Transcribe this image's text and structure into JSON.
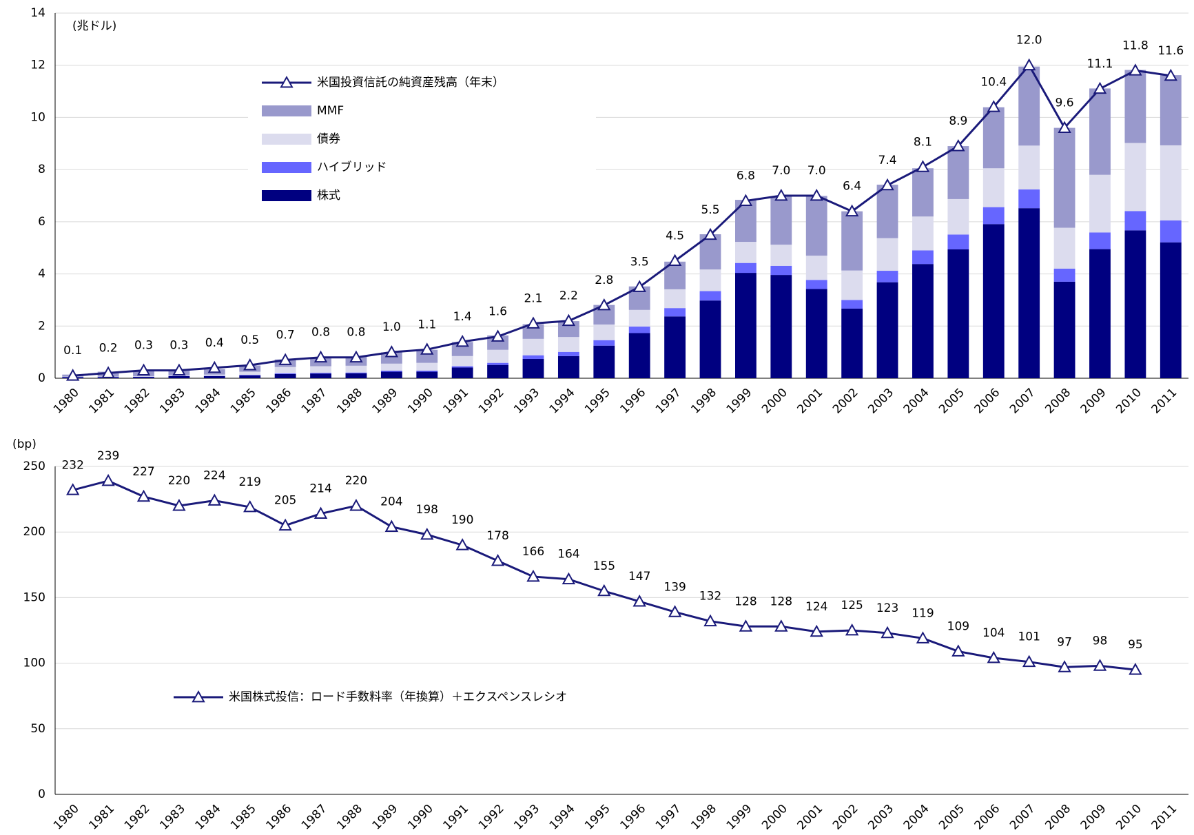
{
  "chart_data": [
    {
      "type": "stacked_bar_line",
      "y_unit_label": "(兆ドル)",
      "categories": [
        "1980",
        "1981",
        "1982",
        "1983",
        "1984",
        "1985",
        "1986",
        "1987",
        "1988",
        "1989",
        "1990",
        "1991",
        "1992",
        "1993",
        "1994",
        "1995",
        "1996",
        "1997",
        "1998",
        "1999",
        "2000",
        "2001",
        "2002",
        "2003",
        "2004",
        "2005",
        "2006",
        "2007",
        "2008",
        "2009",
        "2010",
        "2011"
      ],
      "ylim": [
        0,
        14
      ],
      "yticks": [
        0,
        2,
        4,
        6,
        8,
        10,
        12,
        14
      ],
      "grid": true,
      "series": [
        {
          "name": "株式",
          "kind": "bar",
          "color": "#000080",
          "values": [
            0.04,
            0.04,
            0.05,
            0.08,
            0.08,
            0.11,
            0.16,
            0.18,
            0.19,
            0.25,
            0.25,
            0.41,
            0.51,
            0.74,
            0.85,
            1.25,
            1.73,
            2.37,
            2.98,
            4.04,
            3.96,
            3.42,
            2.67,
            3.68,
            4.38,
            4.94,
            5.91,
            6.52,
            3.7,
            4.95,
            5.67,
            5.21
          ]
        },
        {
          "name": "ハイブリッド",
          "kind": "bar",
          "color": "#6666ff",
          "values": [
            0.01,
            0.01,
            0.01,
            0.01,
            0.01,
            0.02,
            0.03,
            0.03,
            0.03,
            0.04,
            0.04,
            0.05,
            0.08,
            0.14,
            0.16,
            0.21,
            0.25,
            0.32,
            0.36,
            0.38,
            0.35,
            0.35,
            0.33,
            0.44,
            0.52,
            0.57,
            0.65,
            0.72,
            0.5,
            0.64,
            0.74,
            0.84
          ]
        },
        {
          "name": "債券",
          "kind": "bar",
          "color": "#dcdcee",
          "values": [
            0.01,
            0.01,
            0.02,
            0.03,
            0.05,
            0.12,
            0.24,
            0.25,
            0.26,
            0.27,
            0.3,
            0.39,
            0.5,
            0.63,
            0.57,
            0.6,
            0.64,
            0.72,
            0.83,
            0.81,
            0.81,
            0.93,
            1.13,
            1.25,
            1.3,
            1.36,
            1.49,
            1.68,
            1.57,
            2.21,
            2.61,
            2.88
          ]
        },
        {
          "name": "MMF",
          "kind": "bar",
          "color": "#9999cc",
          "values": [
            0.08,
            0.19,
            0.22,
            0.16,
            0.21,
            0.24,
            0.29,
            0.31,
            0.34,
            0.43,
            0.5,
            0.54,
            0.55,
            0.56,
            0.61,
            0.75,
            0.9,
            1.06,
            1.35,
            1.61,
            1.85,
            2.29,
            2.27,
            2.05,
            1.85,
            2.03,
            2.34,
            3.03,
            3.83,
            3.31,
            2.8,
            2.69
          ]
        },
        {
          "name": "米国投資信託の純資産残高（年末）",
          "kind": "line",
          "color": "#1a1a7a",
          "values": [
            0.1,
            0.2,
            0.3,
            0.3,
            0.4,
            0.5,
            0.7,
            0.8,
            0.8,
            1.0,
            1.1,
            1.4,
            1.6,
            2.1,
            2.2,
            2.8,
            3.5,
            4.5,
            5.5,
            6.8,
            7.0,
            7.0,
            6.4,
            7.4,
            8.1,
            8.9,
            10.4,
            12.0,
            9.6,
            11.1,
            11.8,
            11.6
          ],
          "value_labels": [
            "0.1",
            "0.2",
            "0.3",
            "0.3",
            "0.4",
            "0.5",
            "0.7",
            "0.8",
            "0.8",
            "1.0",
            "1.1",
            "1.4",
            "1.6",
            "2.1",
            "2.2",
            "2.8",
            "3.5",
            "4.5",
            "5.5",
            "6.8",
            "7.0",
            "7.0",
            "6.4",
            "7.4",
            "8.1",
            "8.9",
            "10.4",
            "12.0",
            "9.6",
            "11.1",
            "11.8",
            "11.6"
          ]
        }
      ]
    },
    {
      "type": "line",
      "y_unit_label": "(bp)",
      "categories": [
        "1980",
        "1981",
        "1982",
        "1983",
        "1984",
        "1985",
        "1986",
        "1987",
        "1988",
        "1989",
        "1990",
        "1991",
        "1992",
        "1993",
        "1994",
        "1995",
        "1996",
        "1997",
        "1998",
        "1999",
        "2000",
        "2001",
        "2002",
        "2003",
        "2004",
        "2005",
        "2006",
        "2007",
        "2008",
        "2009",
        "2010",
        "2011"
      ],
      "ylim": [
        0,
        250
      ],
      "yticks": [
        0,
        50,
        100,
        150,
        200,
        250
      ],
      "grid": true,
      "series": [
        {
          "name": "米国株式投信：ロード手数料率（年換算）＋エクスペンスレシオ",
          "kind": "line",
          "color": "#1a1a7a",
          "values": [
            232,
            239,
            227,
            220,
            224,
            219,
            205,
            214,
            220,
            204,
            198,
            190,
            178,
            166,
            164,
            155,
            147,
            139,
            132,
            128,
            128,
            124,
            125,
            123,
            119,
            109,
            104,
            101,
            97,
            98,
            95,
            null
          ]
        }
      ]
    }
  ]
}
